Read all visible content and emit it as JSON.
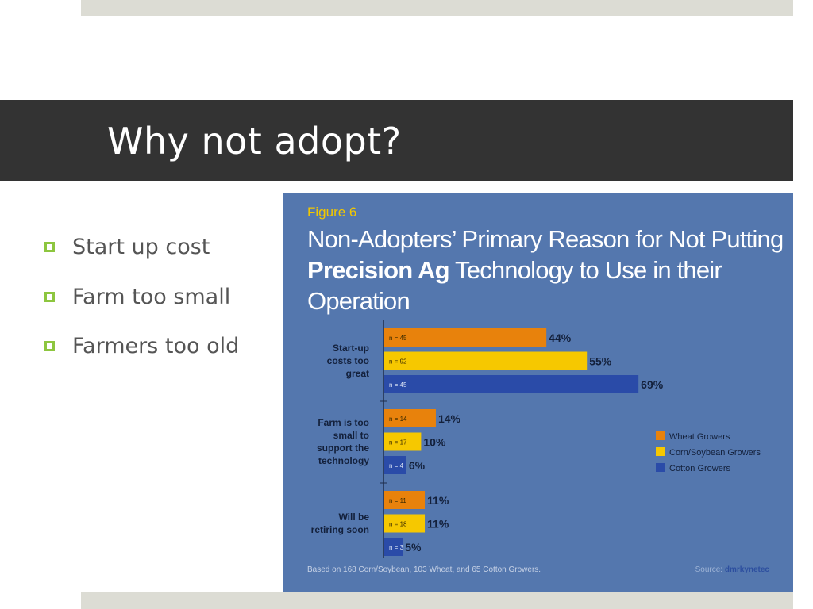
{
  "slide": {
    "title": "Why not adopt?",
    "bullets": [
      "Start up cost",
      "Farm too small",
      "Farmers too old"
    ]
  },
  "figure": {
    "label": "Figure 6",
    "title_part1": "Non-Adopters’ Primary Reason for Not Putting ",
    "title_bold": "Precision Ag",
    "title_part2": " Technology to Use in their Operation",
    "note": "Based on 168 Corn/Soybean, 103 Wheat, and 65 Cotton Growers.",
    "source_prefix": "Source: ",
    "source_brand": "dmrkynetec"
  },
  "chart_data": {
    "type": "bar",
    "orientation": "horizontal",
    "categories": [
      [
        "Start-up",
        "costs too",
        "great"
      ],
      [
        "Farm is too",
        "small to",
        "support the",
        "technology"
      ],
      [
        "Will be",
        "retiring soon"
      ]
    ],
    "series": [
      {
        "name": "Wheat Growers",
        "color": "#e8820c",
        "values": [
          44,
          14,
          11
        ],
        "n": [
          "n = 45",
          "n = 14",
          "n = 11"
        ]
      },
      {
        "name": "Corn/Soybean Growers",
        "color": "#f6c800",
        "values": [
          55,
          10,
          11
        ],
        "n": [
          "n = 92",
          "n = 17",
          "n = 18"
        ]
      },
      {
        "name": "Cotton Growers",
        "color": "#2a4ba8",
        "values": [
          69,
          6,
          5
        ],
        "n": [
          "n = 45",
          "n = 4",
          "n = 3"
        ]
      }
    ],
    "unit": "%",
    "xlim": [
      0,
      69
    ],
    "legend_position": "right"
  }
}
